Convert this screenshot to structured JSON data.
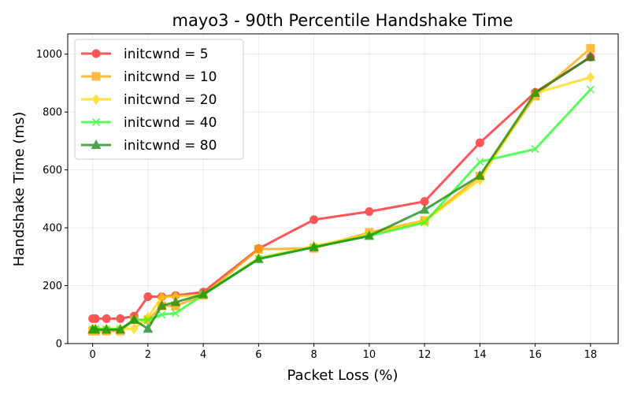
{
  "chart_data": {
    "type": "line",
    "title": "mayo3 - 90th Percentile Handshake Time",
    "xlabel": "Packet Loss (%)",
    "ylabel": "Handshake Time (ms)",
    "xlim": [
      -0.9,
      19.0
    ],
    "ylim": [
      0,
      1070
    ],
    "xticks": [
      0,
      2,
      4,
      6,
      8,
      10,
      12,
      14,
      16,
      18
    ],
    "yticks": [
      0,
      200,
      400,
      600,
      800,
      1000
    ],
    "grid": true,
    "legend_position": "top-left",
    "x": [
      0,
      0.1,
      0.5,
      1,
      1.5,
      2,
      2.5,
      3,
      4,
      6,
      8,
      10,
      12,
      14,
      16,
      18
    ],
    "series": [
      {
        "name": "initcwnd = 5",
        "color": "#ff2020",
        "marker": "circle",
        "values": [
          86,
          86,
          86,
          86,
          95,
          162,
          162,
          166,
          178,
          328,
          428,
          456,
          491,
          694,
          868,
          990
        ]
      },
      {
        "name": "initcwnd = 10",
        "color": "#ffa500",
        "marker": "square",
        "values": [
          43,
          43,
          43,
          43,
          82,
          82,
          130,
          130,
          167,
          326,
          329,
          384,
          425,
          578,
          855,
          1020
        ]
      },
      {
        "name": "initcwnd = 20",
        "color": "#ffd700",
        "marker": "diamond",
        "values": [
          51,
          51,
          51,
          51,
          51,
          91,
          160,
          163,
          168,
          296,
          337,
          378,
          423,
          566,
          865,
          920
        ]
      },
      {
        "name": "initcwnd = 40",
        "color": "#22ff22",
        "marker": "x",
        "values": [
          50,
          50,
          50,
          50,
          82,
          82,
          100,
          105,
          168,
          293,
          333,
          372,
          418,
          628,
          672,
          878
        ]
      },
      {
        "name": "initcwnd = 80",
        "color": "#118811",
        "marker": "triangle",
        "values": [
          48,
          48,
          48,
          48,
          82,
          51,
          131,
          143,
          170,
          292,
          333,
          372,
          462,
          580,
          866,
          990
        ]
      }
    ]
  }
}
